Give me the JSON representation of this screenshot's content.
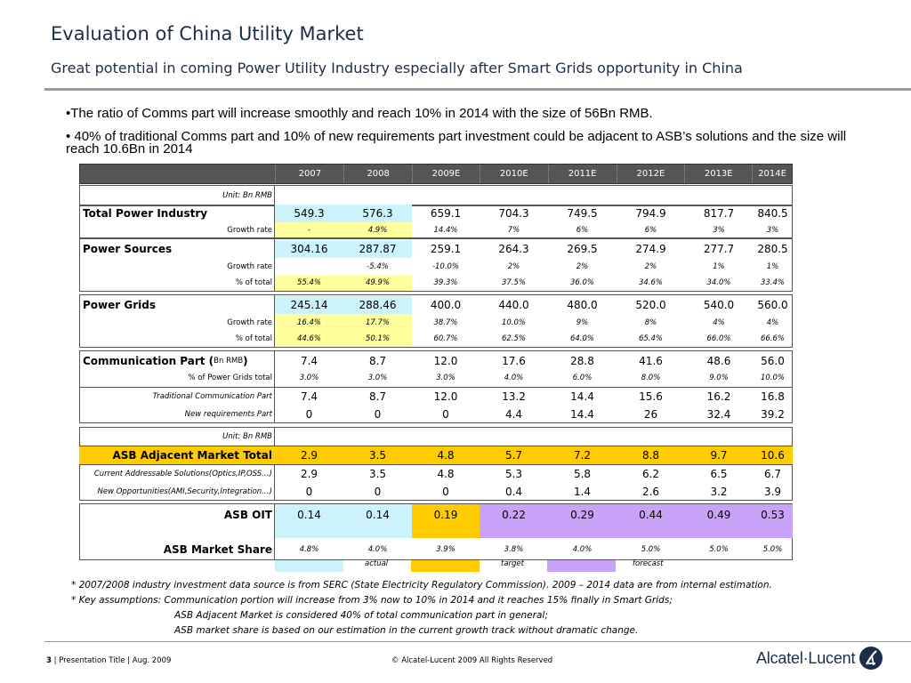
{
  "header": {
    "title": "Evaluation of China Utility Market",
    "subtitle": "Great potential in coming Power Utility Industry especially after Smart Grids opportunity in China"
  },
  "bullets": [
    "•The ratio of Comms part will increase smoothly and reach 10% in 2014 with the size of 56Bn RMB.",
    "• 40% of traditional Comms part and 10% of new requirements part investment could be adjacent to ASB’s solutions and the size will reach 10.6Bn in 2014"
  ],
  "table": {
    "years": [
      "2007",
      "2008",
      "2009E",
      "2010E",
      "2011E",
      "2012E",
      "2013E",
      "2014E"
    ],
    "unit_label": "Unit: Bn RMB",
    "unit_label_2": "Unit: Bn RMB",
    "total_power_industry": {
      "label": "Total Power Industry",
      "values": [
        "549.3",
        "576.3",
        "659.1",
        "704.3",
        "749.5",
        "794.9",
        "817.7",
        "840.5"
      ],
      "growth_label": "Growth rate",
      "growth": [
        "-",
        "4.9%",
        "14.4%",
        "7%",
        "6%",
        "6%",
        "3%",
        "3%"
      ]
    },
    "power_sources": {
      "label": "Power Sources",
      "values": [
        "304.16",
        "287.87",
        "259.1",
        "264.3",
        "269.5",
        "274.9",
        "277.7",
        "280.5"
      ],
      "growth_label": "Growth rate",
      "growth": [
        "",
        "-5.4%",
        "-10.0%",
        "2%",
        "2%",
        "2%",
        "1%",
        "1%"
      ],
      "share_label": "% of total",
      "share": [
        "55.4%",
        "49.9%",
        "39.3%",
        "37.5%",
        "36.0%",
        "34.6%",
        "34.0%",
        "33.4%"
      ]
    },
    "power_grids": {
      "label": "Power Grids",
      "values": [
        "245.14",
        "288.46",
        "400.0",
        "440.0",
        "480.0",
        "520.0",
        "540.0",
        "560.0"
      ],
      "growth_label": "Growth rate",
      "growth": [
        "16.4%",
        "17.7%",
        "38.7%",
        "10.0%",
        "9%",
        "8%",
        "4%",
        "4%"
      ],
      "share_label": "% of total",
      "share": [
        "44.6%",
        "50.1%",
        "60.7%",
        "62.5%",
        "64.0%",
        "65.4%",
        "66.0%",
        "66.6%"
      ]
    },
    "communication_part": {
      "label": "Communication Part (",
      "label_unit": "Bn RMB",
      "label_close": ")",
      "values": [
        "7.4",
        "8.7",
        "12.0",
        "17.6",
        "28.8",
        "41.6",
        "48.6",
        "56.0"
      ],
      "pct_label": "% of Power Grids total",
      "pct": [
        "3.0%",
        "3.0%",
        "3.0%",
        "4.0%",
        "6.0%",
        "8.0%",
        "9.0%",
        "10.0%"
      ],
      "traditional_label": "Traditional Communication Part",
      "traditional": [
        "7.4",
        "8.7",
        "12.0",
        "13.2",
        "14.4",
        "15.6",
        "16.2",
        "16.8"
      ],
      "new_label": "New requirements Part",
      "new": [
        "0",
        "0",
        "0",
        "4.4",
        "14.4",
        "26",
        "32.4",
        "39.2"
      ]
    },
    "asb_adjacent": {
      "label": "ASB Adjacent Market Total",
      "values": [
        "2.9",
        "3.5",
        "4.8",
        "5.7",
        "7.2",
        "8.8",
        "9.7",
        "10.6"
      ],
      "current_label": "Current Addressable Solutions(Optics,IP,OSS…)",
      "current": [
        "2.9",
        "3.5",
        "4.8",
        "5.3",
        "5.8",
        "6.2",
        "6.5",
        "6.7"
      ],
      "newopp_label": "New Opportunities(AMI,Security,Integration…)",
      "newopp": [
        "0",
        "0",
        "0",
        "0.4",
        "1.4",
        "2.6",
        "3.2",
        "3.9"
      ]
    },
    "asb_oit": {
      "label": "ASB OIT",
      "values": [
        "0.14",
        "0.14",
        "0.19",
        "0.22",
        "0.29",
        "0.44",
        "0.49",
        "0.53"
      ],
      "share_label": "ASB Market Share",
      "share": [
        "4.8%",
        "4.0%",
        "3.9%",
        "3.8%",
        "4.0%",
        "5.0%",
        "5.0%",
        "5.0%"
      ]
    },
    "legend": {
      "actual": "actual",
      "target": "target",
      "forecast": "forecast"
    },
    "colors": {
      "actual": "#ccf2fb",
      "target": "#ffcc00",
      "forecast": "#c9a3f7",
      "highlight": "#ffff9e"
    }
  },
  "notes": {
    "line1": "*  2007/2008 industry investment data source is from SERC (State Electricity Regulatory Commission). 2009 – 2014 data are from internal estimation.",
    "line2": "*  Key assumptions:  Communication portion will increase from 3% now to 10% in 2014 and it reaches 15% finally in Smart Grids;",
    "line3": "ASB Adjacent Market is considered 40% of total communication part in general;",
    "line4": "ASB market share is based on our estimation in the current growth track without dramatic change."
  },
  "footer": {
    "page_number": "3",
    "left_text": " | Presentation Title | Aug.  2009",
    "copyright": "© Alcatel-Lucent 2009 All Rights Reserved",
    "logo_text": "Alcatel·Lucent",
    "logo_icon": "alcatel-lucent-logo-icon"
  }
}
